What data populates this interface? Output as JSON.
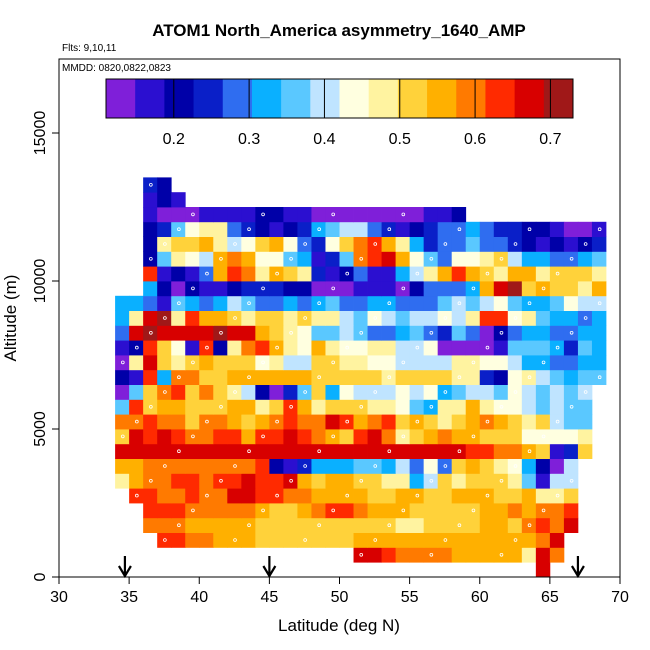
{
  "chart_data": {
    "type": "heatmap",
    "title": "ATOM1 North_America asymmetry_1640_AMP",
    "flights_label": "Flts: 9,10,11",
    "mmdd_label": "MMDD: 0820,0822,0823",
    "xlabel": "Latitude (deg N)",
    "ylabel": "Altitude (m)",
    "xlim": [
      30,
      70
    ],
    "ylim": [
      0,
      17500
    ],
    "x_ticks": [
      30,
      35,
      40,
      45,
      50,
      55,
      60,
      65,
      70
    ],
    "y_ticks": [
      0,
      5000,
      10000,
      15000
    ],
    "colorbar": {
      "range": [
        0.11,
        0.73
      ],
      "ticks": [
        0.2,
        0.3,
        0.4,
        0.5,
        0.6,
        0.7
      ],
      "tick_labels": [
        "0.2",
        "0.3",
        "0.4",
        "0.5",
        "0.6",
        "0.7"
      ],
      "colors": [
        "#7f1fd9",
        "#2b0fd0",
        "#0000a8",
        "#0a1fc8",
        "#2f6df0",
        "#0ab0ff",
        "#5ac8ff",
        "#bfe4ff",
        "#ffffe0",
        "#fff3a0",
        "#ffd23a",
        "#ffb000",
        "#ff7a00",
        "#ff2a00",
        "#d80000",
        "#a01818"
      ]
    },
    "arrows_at_latitude": [
      34.7,
      45,
      67
    ],
    "grid": {
      "lat_start": 30,
      "lat_step": 1,
      "alt_start": 0,
      "alt_step": 500,
      "cols": 40,
      "rows": 35,
      "cells": {
        "26": "36:3,37:2",
        "25": "36:1,37:2,38:1",
        "24": "36:1,37:0,38:0,39:0,40:1,41:1,42:1,43:1,44:2,45:2,46:1,47:1,48:0,49:0,50:0,51:0,52:0,53:0,54:0,55:0,56:1,57:1,58:2",
        "23": "36:2,37:3,38:6,39:8,40:9,41:9,42:4,43:3,44:2,45:1,46:2,47:3,48:5,49:6,50:7,51:7,52:4,53:3,54:1,55:2,56:3,57:4,58:4,59:5,60:4,61:3,62:3,63:2,64:2,65:1,66:0,67:0,68:1",
        "22": "36:2,37:9,38:10,39:10,40:11,41:9,42:7,43:8,44:10,45:11,46:8,47:4,48:3,49:8,50:10,51:12,52:13,53:11,54:9,55:5,56:3,57:4,58:4,59:6,60:4,61:4,62:3,63:2,64:1,65:2,66:1,67:2,68:3",
        "21": "36:2,37:6,38:9,39:8,40:7,41:11,42:12,43:11,44:8,45:8,46:6,47:5,48:1,49:3,50:6,51:12,52:13,53:14,54:11,55:8,56:6,57:4,58:8,59:8,60:9,61:10,62:7,63:5,64:5,65:4,66:4,67:5,68:6",
        "20": "36:13,37:1,38:2,39:1,40:4,41:11,42:13,43:12,44:9,45:11,46:10,47:9,48:3,49:1,50:2,51:4,52:1,53:1,54:5,55:7,56:9,57:11,58:13,59:11,60:10,61:9,62:11,63:11,64:9,65:10,66:10,67:10,68:9",
        "19": "36:5,37:2,38:0,39:2,40:1,41:1,42:2,43:3,44:3,45:3,46:2,47:2,48:0,49:0,50:0,51:1,52:1,53:1,54:0,55:2,56:4,57:4,58:4,59:5,60:11,61:14,62:15,63:10,64:11,65:10,66:10,67:9,68:11",
        "18": "34:5,35:5,36:4,37:1,38:6,39:5,40:4,41:5,42:7,43:6,44:4,45:4,46:5,47:4,48:5,49:6,50:4,51:4,52:5,53:5,54:4,55:4,56:4,57:6,58:7,59:6,60:7,61:8,62:6,63:5,64:5,65:6,66:8,67:7,68:7",
        "17": "34:5,35:9,36:14,37:15,38:9,39:13,40:11,41:11,42:10,43:9,44:10,45:10,46:9,47:10,48:9,49:9,50:7,51:6,52:8,53:7,54:6,55:7,56:7,57:8,58:7,59:9,60:13,61:13,62:8,63:9,64:6,65:5,66:5,67:4,68:5",
        "16": "34:4,35:14,36:15,37:14,38:14,39:14,40:14,41:15,42:14,43:14,44:11,45:10,46:9,47:8,48:6,49:6,50:7,51:6,52:4,53:4,54:5,55:6,56:4,57:3,58:6,59:4,60:0,61:2,62:4,63:5,64:5,65:4,66:4,67:5,68:5",
        "15": "34:1,35:2,36:13,37:10,38:8,39:1,40:13,41:2,42:9,43:12,44:13,45:11,46:9,47:8,48:11,49:9,50:8,51:8,52:9,53:9,54:7,55:7,56:8,57:0,58:0,59:0,60:0,61:1,62:6,63:6,64:6,65:5,66:3,67:6,68:5",
        "14": "34:0,35:9,36:14,37:10,38:9,39:10,40:11,41:10,42:10,43:10,44:8,45:9,46:7,47:7,48:10,49:10,50:9,51:9,52:8,53:8,54:7,55:7,56:7,57:7,58:9,59:9,60:8,61:8,62:7,63:5,64:5,65:4,66:4,67:5,68:5",
        "13": "34:2,35:1,36:13,37:5,38:12,39:12,40:10,41:10,42:11,43:11,44:11,45:11,46:11,47:11,48:10,49:10,50:10,51:10,52:10,53:9,54:10,55:10,56:10,57:10,58:9,59:9,60:3,61:2,62:8,63:9,64:7,65:6,66:5,67:6,68:6",
        "12": "34:0,35:6,36:10,37:12,38:13,39:10,40:12,41:10,42:9,43:7,44:2,45:0,46:3,47:6,48:10,49:5,50:8,51:7,52:7,53:7,54:8,55:7,56:8,57:5,58:6,59:7,60:7,61:6,62:8,63:7,64:6,65:7,66:6,67:7",
        "11": "34:6,35:13,36:10,37:11,38:11,39:10,40:10,41:10,42:11,43:11,44:9,45:10,46:13,47:11,48:9,49:10,50:10,51:10,52:9,53:9,54:8,55:6,56:5,57:9,58:9,59:11,60:9,61:8,62:8,63:7,64:6,65:7,66:6,67:6",
        "10": "34:12,35:12,36:13,37:12,38:12,39:10,40:12,41:12,42:11,43:10,44:11,45:12,46:13,47:12,48:12,49:14,50:13,51:11,52:12,53:13,54:10,55:11,56:10,57:9,58:10,59:11,60:12,61:11,62:10,63:9,64:10,65:7,66:6,67:6",
        "9": "34:10,35:14,36:13,37:14,38:13,39:12,40:12,41:13,42:13,43:11,44:13,45:13,46:14,47:13,48:12,49:11,50:10,51:13,52:14,53:12,54:9,55:10,56:11,57:12,58:11,59:11,60:10,61:10,62:10,63:8,64:8,65:8,66:8,67:9",
        "8": "34:14,35:14,36:14,37:14,38:14,39:14,40:14,41:14,42:14,43:14,44:14,45:14,46:14,47:14,48:14,49:14,50:14,51:14,52:14,53:14,54:14,55:14,56:14,57:14,58:14,59:13,60:13,61:12,62:12,63:11,64:10,65:1,66:3,67:10",
        "7": "34:11,35:11,36:12,37:12,38:12,39:12,40:12,41:12,42:12,43:12,44:13,45:2,46:1,47:3,48:5,49:5,50:5,51:6,52:6,53:5,54:7,55:4,56:8,57:4,58:10,59:11,60:10,61:9,62:8,63:5,64:2,65:0,66:7",
        "6": "34:9,35:11,36:12,37:12,38:13,39:13,40:12,41:13,42:13,43:14,44:13,45:13,46:14,47:11,48:10,49:11,50:11,51:10,52:10,53:9,54:9,55:5,56:7,57:10,58:9,59:10,60:10,61:10,62:9,63:6,64:1,65:7,66:7",
        "5": "35:13,36:13,37:12,38:12,39:13,40:12,41:12,42:14,43:14,44:13,45:13,46:12,47:12,48:11,49:11,50:11,51:11,52:10,53:10,54:11,55:11,56:10,57:10,58:11,59:11,60:11,61:10,62:10,63:11,64:9,65:9,66:10",
        "4": "36:13,37:13,38:13,39:12,40:12,41:12,42:12,43:12,44:11,45:10,46:10,47:11,48:12,49:13,50:13,51:12,52:11,53:11,54:11,55:10,56:10,57:10,58:10,59:10,60:11,61:11,62:12,63:11,64:12,65:12,66:13",
        "3": "36:12,37:12,38:12,39:11,40:11,41:11,42:11,43:11,44:10,45:10,46:10,47:10,48:10,49:10,50:10,51:10,52:10,53:10,54:9,55:9,56:10,57:10,58:10,59:10,60:11,61:11,62:10,63:12,64:13,65:12,66:14",
        "2": "37:13,38:13,39:12,40:12,41:11,42:11,43:11,44:10,45:10,46:10,47:10,48:10,49:10,50:10,51:11,52:11,53:11,54:11,55:11,56:11,57:11,58:11,59:11,60:11,61:11,62:11,63:11,64:12,65:14",
        "1": "51:14,52:14,53:13,54:12,55:12,56:12,57:12,58:11,59:11,60:11,61:11,62:11,63:9,64:14,65:12",
        "0": "64:14"
      }
    }
  }
}
